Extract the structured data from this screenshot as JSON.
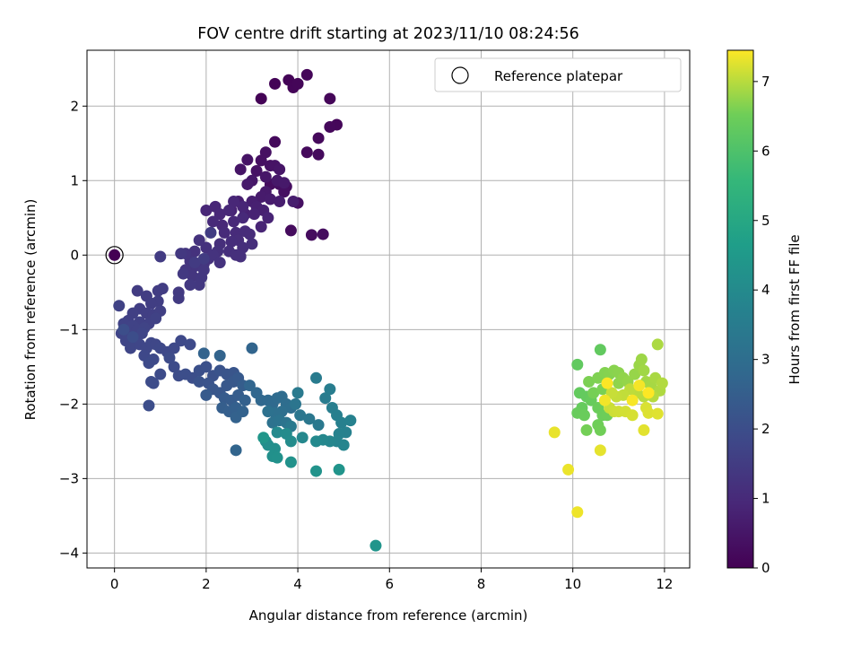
{
  "chart_data": {
    "type": "scatter",
    "title": "FOV centre drift starting at 2023/11/10 08:24:56",
    "xlabel": "Angular distance from reference (arcmin)",
    "ylabel": "Rotation from reference (arcmin)",
    "xlim": [
      -0.6,
      12.55
    ],
    "ylim": [
      -4.2,
      2.75
    ],
    "xticks": [
      0,
      2,
      4,
      6,
      8,
      10,
      12
    ],
    "yticks": [
      -4,
      -3,
      -2,
      -1,
      0,
      1,
      2
    ],
    "grid": true,
    "legend": {
      "position": "top-right",
      "entries": [
        "Reference platepar"
      ]
    },
    "colorbar": {
      "label": "Hours from first FF file",
      "range": [
        0,
        7.45
      ],
      "ticks": [
        0,
        1,
        2,
        3,
        4,
        5,
        6,
        7
      ],
      "colormap": "viridis"
    },
    "reference_point": {
      "x": 0,
      "y": 0
    },
    "clusters": [
      {
        "tmin": 0.05,
        "tmax": 0.35,
        "points": [
          [
            3.2,
            2.1
          ],
          [
            3.5,
            2.3
          ],
          [
            3.8,
            2.35
          ],
          [
            3.9,
            2.25
          ],
          [
            4.0,
            2.3
          ],
          [
            4.2,
            2.42
          ],
          [
            4.7,
            2.1
          ],
          [
            4.85,
            1.75
          ],
          [
            4.7,
            1.72
          ],
          [
            4.45,
            1.57
          ],
          [
            3.5,
            1.52
          ],
          [
            4.2,
            1.38
          ],
          [
            4.45,
            1.35
          ],
          [
            3.85,
            0.33
          ],
          [
            4.3,
            0.27
          ],
          [
            4.55,
            0.28
          ],
          [
            3.4,
            0.95
          ],
          [
            3.6,
            0.95
          ],
          [
            3.75,
            0.92
          ],
          [
            3.7,
            0.85
          ],
          [
            4.0,
            0.7
          ]
        ]
      },
      {
        "tmin": 0.35,
        "tmax": 0.9,
        "points": [
          [
            3.3,
            1.38
          ],
          [
            3.2,
            1.27
          ],
          [
            3.4,
            1.2
          ],
          [
            3.1,
            1.13
          ],
          [
            3.5,
            1.2
          ],
          [
            2.9,
            1.28
          ],
          [
            2.75,
            1.15
          ],
          [
            3.6,
            1.15
          ],
          [
            3.3,
            1.05
          ],
          [
            3.0,
            1.0
          ],
          [
            3.55,
            1.0
          ],
          [
            3.7,
            0.97
          ],
          [
            3.3,
            0.85
          ],
          [
            2.9,
            0.95
          ],
          [
            3.2,
            0.78
          ],
          [
            3.4,
            0.75
          ],
          [
            3.6,
            0.72
          ],
          [
            3.9,
            0.72
          ],
          [
            2.7,
            0.72
          ],
          [
            3.0,
            0.72
          ],
          [
            3.1,
            0.65
          ],
          [
            3.25,
            0.6
          ],
          [
            2.85,
            0.55
          ],
          [
            3.05,
            0.55
          ],
          [
            2.55,
            0.6
          ],
          [
            3.35,
            0.5
          ],
          [
            3.2,
            0.38
          ],
          [
            2.8,
            0.65
          ],
          [
            2.6,
            0.72
          ]
        ]
      },
      {
        "tmin": 0.9,
        "tmax": 1.5,
        "points": [
          [
            2.0,
            0.6
          ],
          [
            2.2,
            0.65
          ],
          [
            2.3,
            0.55
          ],
          [
            2.5,
            0.6
          ],
          [
            2.35,
            0.4
          ],
          [
            2.6,
            0.45
          ],
          [
            2.8,
            0.5
          ],
          [
            2.15,
            0.45
          ],
          [
            2.4,
            0.3
          ],
          [
            2.65,
            0.3
          ],
          [
            2.85,
            0.32
          ],
          [
            2.95,
            0.28
          ],
          [
            2.7,
            0.2
          ],
          [
            2.55,
            0.18
          ],
          [
            2.8,
            0.1
          ],
          [
            3.0,
            0.15
          ],
          [
            2.3,
            0.15
          ],
          [
            2.5,
            0.05
          ],
          [
            2.65,
            0.0
          ],
          [
            2.75,
            -0.02
          ],
          [
            2.25,
            0.05
          ],
          [
            2.0,
            0.1
          ],
          [
            1.85,
            0.2
          ],
          [
            1.75,
            0.05
          ],
          [
            2.05,
            -0.05
          ],
          [
            2.15,
            0.0
          ],
          [
            2.3,
            -0.1
          ],
          [
            1.95,
            -0.12
          ],
          [
            1.65,
            -0.08
          ],
          [
            1.55,
            0.02
          ],
          [
            1.75,
            -0.15
          ],
          [
            1.55,
            -0.2
          ],
          [
            1.7,
            -0.28
          ],
          [
            1.95,
            -0.2
          ],
          [
            1.9,
            -0.3
          ],
          [
            1.85,
            -0.4
          ],
          [
            1.45,
            0.02
          ],
          [
            1.65,
            -0.4
          ],
          [
            1.5,
            -0.25
          ],
          [
            1.4,
            -0.5
          ],
          [
            1.4,
            -0.58
          ],
          [
            1.0,
            -0.02
          ],
          [
            1.75,
            -0.1
          ],
          [
            2.1,
            0.3
          ],
          [
            1.95,
            -0.05
          ]
        ]
      },
      {
        "tmin": 1.5,
        "tmax": 2.0,
        "points": [
          [
            0.5,
            -0.48
          ],
          [
            0.7,
            -0.55
          ],
          [
            0.95,
            -0.48
          ],
          [
            1.05,
            -0.45
          ],
          [
            0.95,
            -0.62
          ],
          [
            0.8,
            -0.65
          ],
          [
            0.55,
            -0.72
          ],
          [
            0.7,
            -0.78
          ],
          [
            0.85,
            -0.8
          ],
          [
            1.0,
            -0.75
          ],
          [
            0.4,
            -0.78
          ],
          [
            0.3,
            -0.88
          ],
          [
            0.55,
            -0.9
          ],
          [
            0.75,
            -0.92
          ],
          [
            0.9,
            -0.85
          ],
          [
            0.1,
            -0.68
          ],
          [
            0.2,
            -0.92
          ],
          [
            0.4,
            -0.95
          ],
          [
            0.3,
            -1.05
          ],
          [
            0.5,
            -1.0
          ],
          [
            0.65,
            -0.98
          ],
          [
            0.15,
            -1.05
          ],
          [
            0.25,
            -1.15
          ],
          [
            0.45,
            -1.15
          ],
          [
            0.6,
            -1.05
          ],
          [
            0.35,
            -1.25
          ],
          [
            0.55,
            -1.2
          ],
          [
            0.7,
            -1.25
          ],
          [
            0.8,
            -1.18
          ],
          [
            0.9,
            -1.2
          ],
          [
            1.0,
            -1.25
          ],
          [
            0.65,
            -1.35
          ],
          [
            1.15,
            -1.3
          ],
          [
            1.3,
            -1.25
          ],
          [
            1.45,
            -1.15
          ],
          [
            1.65,
            -1.2
          ],
          [
            0.85,
            -1.4
          ],
          [
            0.75,
            -1.45
          ],
          [
            1.2,
            -1.38
          ],
          [
            1.3,
            -1.5
          ],
          [
            1.0,
            -1.6
          ],
          [
            1.4,
            -1.62
          ],
          [
            0.8,
            -1.7
          ],
          [
            0.85,
            -1.72
          ],
          [
            0.75,
            -2.02
          ],
          [
            0.4,
            -1.1
          ],
          [
            0.2,
            -1.0
          ]
        ]
      },
      {
        "tmin": 2.0,
        "tmax": 2.7,
        "points": [
          [
            1.55,
            -1.6
          ],
          [
            1.7,
            -1.65
          ],
          [
            1.85,
            -1.55
          ],
          [
            2.0,
            -1.5
          ],
          [
            2.15,
            -1.62
          ],
          [
            1.85,
            -1.7
          ],
          [
            2.05,
            -1.72
          ],
          [
            2.3,
            -1.55
          ],
          [
            2.45,
            -1.6
          ],
          [
            2.6,
            -1.58
          ],
          [
            2.15,
            -1.8
          ],
          [
            2.3,
            -1.85
          ],
          [
            2.45,
            -1.75
          ],
          [
            2.6,
            -1.7
          ],
          [
            2.7,
            -1.65
          ],
          [
            2.0,
            -1.88
          ],
          [
            2.4,
            -1.92
          ],
          [
            2.55,
            -1.95
          ],
          [
            2.7,
            -1.88
          ],
          [
            2.8,
            -1.75
          ],
          [
            2.35,
            -2.05
          ],
          [
            2.5,
            -2.1
          ],
          [
            2.65,
            -2.05
          ],
          [
            2.85,
            -1.95
          ],
          [
            2.65,
            -2.18
          ],
          [
            2.8,
            -2.1
          ],
          [
            1.95,
            -1.32
          ],
          [
            2.3,
            -1.35
          ],
          [
            2.65,
            -2.62
          ]
        ]
      },
      {
        "tmin": 2.7,
        "tmax": 4.4,
        "points": [
          [
            3.0,
            -1.25
          ],
          [
            2.95,
            -1.75
          ],
          [
            3.1,
            -1.85
          ],
          [
            3.2,
            -1.95
          ],
          [
            3.35,
            -1.95
          ],
          [
            3.45,
            -2.0
          ],
          [
            3.55,
            -1.92
          ],
          [
            3.65,
            -1.9
          ],
          [
            3.75,
            -2.0
          ],
          [
            3.85,
            -2.05
          ],
          [
            3.65,
            -2.1
          ],
          [
            3.5,
            -2.12
          ],
          [
            3.35,
            -2.1
          ],
          [
            3.45,
            -2.25
          ],
          [
            3.6,
            -2.22
          ],
          [
            3.75,
            -2.25
          ],
          [
            3.95,
            -2.0
          ],
          [
            4.05,
            -2.15
          ],
          [
            4.25,
            -2.2
          ],
          [
            4.45,
            -2.28
          ],
          [
            3.85,
            -2.3
          ],
          [
            4.0,
            -1.85
          ],
          [
            4.4,
            -1.65
          ],
          [
            4.6,
            -1.92
          ],
          [
            4.7,
            -1.8
          ],
          [
            4.75,
            -2.05
          ],
          [
            4.85,
            -2.15
          ],
          [
            4.95,
            -2.25
          ],
          [
            5.05,
            -2.38
          ],
          [
            5.15,
            -2.22
          ],
          [
            4.9,
            -2.4
          ],
          [
            4.85,
            -2.5
          ],
          [
            5.0,
            -2.55
          ],
          [
            4.7,
            -2.5
          ],
          [
            4.55,
            -2.48
          ],
          [
            4.1,
            -2.45
          ],
          [
            4.4,
            -2.5
          ],
          [
            3.55,
            -2.38
          ],
          [
            3.75,
            -2.4
          ],
          [
            3.85,
            -2.5
          ],
          [
            3.3,
            -2.5
          ],
          [
            3.35,
            -2.55
          ],
          [
            3.5,
            -2.6
          ],
          [
            3.45,
            -2.7
          ],
          [
            3.55,
            -2.72
          ],
          [
            3.85,
            -2.78
          ],
          [
            4.4,
            -2.9
          ],
          [
            4.9,
            -2.88
          ],
          [
            5.7,
            -3.9
          ],
          [
            3.25,
            -2.45
          ]
        ]
      },
      {
        "tmin": 6.3,
        "tmax": 7.45,
        "points": [
          [
            10.1,
            -1.47
          ],
          [
            10.6,
            -1.27
          ],
          [
            10.15,
            -1.85
          ],
          [
            10.3,
            -1.9
          ],
          [
            10.2,
            -2.05
          ],
          [
            10.4,
            -1.95
          ],
          [
            10.1,
            -2.12
          ],
          [
            10.25,
            -2.15
          ],
          [
            10.55,
            -2.05
          ],
          [
            10.65,
            -2.15
          ],
          [
            10.75,
            -2.15
          ],
          [
            10.55,
            -2.28
          ],
          [
            10.6,
            -2.35
          ],
          [
            10.3,
            -2.35
          ],
          [
            10.45,
            -1.85
          ],
          [
            10.65,
            -1.8
          ],
          [
            10.35,
            -1.7
          ],
          [
            10.55,
            -1.65
          ],
          [
            10.7,
            -1.58
          ],
          [
            10.8,
            -1.6
          ],
          [
            10.9,
            -1.55
          ],
          [
            11.0,
            -1.58
          ],
          [
            11.0,
            -1.72
          ],
          [
            11.1,
            -1.65
          ],
          [
            11.2,
            -1.7
          ],
          [
            11.35,
            -1.6
          ],
          [
            11.45,
            -1.48
          ],
          [
            11.5,
            -1.4
          ],
          [
            11.55,
            -1.55
          ],
          [
            11.6,
            -1.7
          ],
          [
            11.7,
            -1.75
          ],
          [
            11.8,
            -1.65
          ],
          [
            11.85,
            -1.2
          ],
          [
            11.9,
            -1.82
          ],
          [
            11.95,
            -1.72
          ],
          [
            11.75,
            -1.9
          ],
          [
            11.55,
            -1.9
          ],
          [
            11.4,
            -1.85
          ],
          [
            11.25,
            -1.8
          ],
          [
            11.1,
            -1.88
          ],
          [
            10.95,
            -1.9
          ],
          [
            10.85,
            -1.85
          ],
          [
            10.8,
            -2.05
          ],
          [
            10.9,
            -2.1
          ],
          [
            11.0,
            -2.1
          ],
          [
            11.15,
            -2.1
          ],
          [
            11.3,
            -2.15
          ],
          [
            11.6,
            -2.05
          ],
          [
            11.65,
            -2.12
          ],
          [
            11.85,
            -2.13
          ],
          [
            11.55,
            -2.35
          ],
          [
            10.6,
            -2.62
          ],
          [
            9.6,
            -2.38
          ],
          [
            9.9,
            -2.88
          ],
          [
            10.1,
            -3.45
          ],
          [
            10.7,
            -1.95
          ],
          [
            11.45,
            -1.75
          ],
          [
            11.3,
            -1.95
          ],
          [
            10.75,
            -1.72
          ],
          [
            11.65,
            -1.85
          ]
        ]
      }
    ]
  }
}
